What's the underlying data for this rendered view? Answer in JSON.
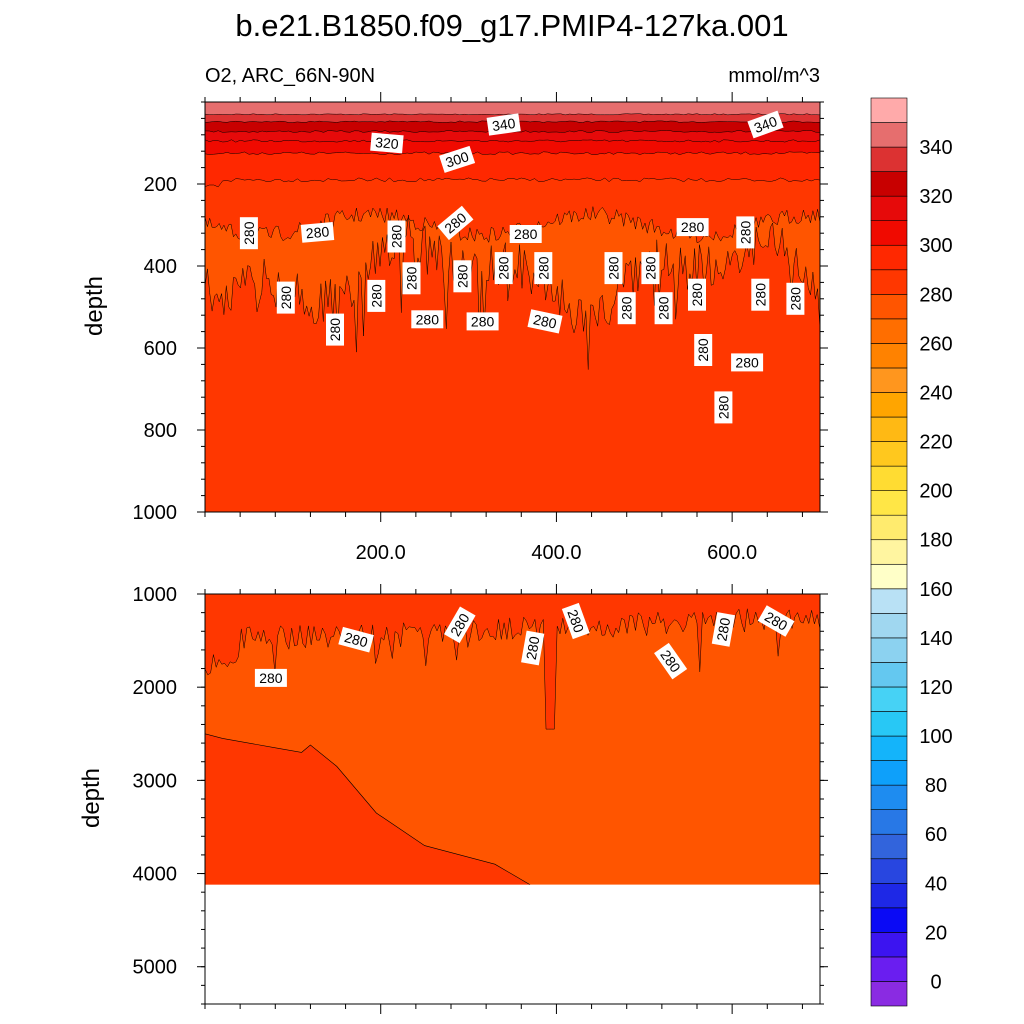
{
  "chart_data": {
    "type": "contour",
    "title": "b.e21.B1850.f09_g17.PMIP4-127ka.001",
    "subtitle_left": "O2, ARC_66N-90N",
    "units": "mmol/m^3",
    "x": {
      "range": [
        0,
        700
      ],
      "ticks": [
        200,
        400,
        600
      ],
      "tick_labels": [
        "200.0",
        "400.0",
        "600.0"
      ]
    },
    "panels": [
      {
        "name": "upper",
        "ylabel": "depth",
        "ylim": [
          0,
          1000
        ],
        "yticks": [
          200,
          400,
          600,
          800,
          1000
        ],
        "ytick_labels": [
          "200",
          "400",
          "600",
          "800",
          "1000"
        ],
        "contour_labels": [
          {
            "text": "340",
            "x": 340,
            "y": 55,
            "rot": -8
          },
          {
            "text": "340",
            "x": 638,
            "y": 55,
            "rot": -20
          },
          {
            "text": "320",
            "x": 207,
            "y": 100,
            "rot": 5
          },
          {
            "text": "300",
            "x": 287,
            "y": 140,
            "rot": -18
          },
          {
            "text": "280",
            "x": 50,
            "y": 320,
            "rot": -90
          },
          {
            "text": "280",
            "x": 128,
            "y": 318,
            "rot": -5
          },
          {
            "text": "280",
            "x": 218,
            "y": 328,
            "rot": -90
          },
          {
            "text": "280",
            "x": 285,
            "y": 295,
            "rot": -40
          },
          {
            "text": "280",
            "x": 365,
            "y": 322,
            "rot": 0
          },
          {
            "text": "280",
            "x": 555,
            "y": 305,
            "rot": 0
          },
          {
            "text": "280",
            "x": 615,
            "y": 318,
            "rot": -90
          },
          {
            "text": "280",
            "x": 92,
            "y": 477,
            "rot": -90
          },
          {
            "text": "280",
            "x": 148,
            "y": 555,
            "rot": -90
          },
          {
            "text": "280",
            "x": 195,
            "y": 473,
            "rot": -90
          },
          {
            "text": "280",
            "x": 235,
            "y": 430,
            "rot": -90
          },
          {
            "text": "280",
            "x": 253,
            "y": 530,
            "rot": 0
          },
          {
            "text": "280",
            "x": 293,
            "y": 425,
            "rot": -90
          },
          {
            "text": "280",
            "x": 316,
            "y": 535,
            "rot": 0
          },
          {
            "text": "280",
            "x": 340,
            "y": 405,
            "rot": -90
          },
          {
            "text": "280",
            "x": 385,
            "y": 405,
            "rot": -90
          },
          {
            "text": "280",
            "x": 387,
            "y": 535,
            "rot": 12
          },
          {
            "text": "280",
            "x": 465,
            "y": 405,
            "rot": -90
          },
          {
            "text": "280",
            "x": 507,
            "y": 405,
            "rot": -90
          },
          {
            "text": "280",
            "x": 480,
            "y": 503,
            "rot": -90
          },
          {
            "text": "280",
            "x": 522,
            "y": 503,
            "rot": -90
          },
          {
            "text": "280",
            "x": 560,
            "y": 470,
            "rot": -90
          },
          {
            "text": "280",
            "x": 567,
            "y": 605,
            "rot": -90
          },
          {
            "text": "280",
            "x": 617,
            "y": 635,
            "rot": 0
          },
          {
            "text": "280",
            "x": 590,
            "y": 745,
            "rot": -90
          },
          {
            "text": "280",
            "x": 632,
            "y": 470,
            "rot": -90
          },
          {
            "text": "280",
            "x": 672,
            "y": 480,
            "rot": -90
          }
        ]
      },
      {
        "name": "lower",
        "ylabel": "depth",
        "ylim": [
          1000,
          5400
        ],
        "yticks": [
          1000,
          2000,
          3000,
          4000,
          5000
        ],
        "ytick_labels": [
          "1000",
          "2000",
          "3000",
          "4000",
          "5000"
        ],
        "bottom_depth": 4120,
        "contour_labels": [
          {
            "text": "280",
            "x": 75,
            "y": 1900,
            "rot": 0
          },
          {
            "text": "280",
            "x": 172,
            "y": 1490,
            "rot": 15
          },
          {
            "text": "280",
            "x": 290,
            "y": 1330,
            "rot": -60
          },
          {
            "text": "280",
            "x": 373,
            "y": 1580,
            "rot": -80
          },
          {
            "text": "280",
            "x": 422,
            "y": 1290,
            "rot": 70
          },
          {
            "text": "280",
            "x": 530,
            "y": 1720,
            "rot": 55
          },
          {
            "text": "280",
            "x": 590,
            "y": 1380,
            "rot": -80
          },
          {
            "text": "280",
            "x": 650,
            "y": 1290,
            "rot": 30
          }
        ]
      }
    ],
    "colorbar": {
      "levels": [
        -10,
        0,
        10,
        20,
        30,
        40,
        50,
        60,
        70,
        80,
        90,
        100,
        110,
        120,
        130,
        140,
        150,
        160,
        170,
        180,
        190,
        200,
        210,
        220,
        230,
        240,
        250,
        260,
        270,
        280,
        290,
        300,
        310,
        320,
        330,
        340,
        350,
        360
      ],
      "labels": [
        "0",
        "20",
        "40",
        "60",
        "80",
        "100",
        "120",
        "140",
        "160",
        "180",
        "200",
        "220",
        "240",
        "260",
        "280",
        "300",
        "320",
        "340"
      ],
      "colors": [
        "#8a2be2",
        "#6a1ef0",
        "#3c14f0",
        "#0a0af5",
        "#1e28e6",
        "#2846e0",
        "#3264dc",
        "#2878e6",
        "#1e8cf0",
        "#0ea0fa",
        "#14b4fa",
        "#28c8f5",
        "#46d2f5",
        "#64c8f0",
        "#8cd2f0",
        "#a0d7f0",
        "#b9e1f5",
        "#ffffc8",
        "#fff5a0",
        "#ffeb6e",
        "#ffe646",
        "#ffdc32",
        "#ffc81e",
        "#ffb914",
        "#ffa500",
        "#ff961e",
        "#ff8200",
        "#ff6e00",
        "#ff5500",
        "#ff3700",
        "#ff2800",
        "#f00a00",
        "#e60a0a",
        "#c80000",
        "#dc3232",
        "#e66e6e",
        "#ffaaaa"
      ]
    }
  }
}
